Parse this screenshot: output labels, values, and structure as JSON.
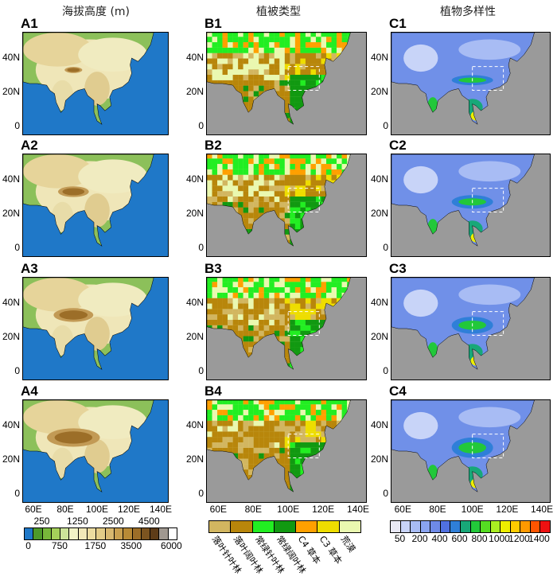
{
  "column_titles": [
    "海拔高度 (m)",
    "植被类型",
    "植物多样性"
  ],
  "panel_labels": {
    "A": [
      "A1",
      "A2",
      "A3",
      "A4"
    ],
    "B": [
      "B1",
      "B2",
      "B3",
      "B4"
    ],
    "C": [
      "C1",
      "C2",
      "C3",
      "C4"
    ]
  },
  "y_ticks": [
    "40N",
    "20N",
    "0"
  ],
  "x_ticks": [
    "60E",
    "80E",
    "100E",
    "120E",
    "140E"
  ],
  "colors": {
    "ocean_A": "#1f78c8",
    "ocean_BC": "#9a9a9a",
    "coast": "#000000",
    "box": "#ffffff"
  },
  "elevation_legend": {
    "top_labels": [
      "250",
      "1250",
      "2500",
      "4500"
    ],
    "bottom_labels": [
      "0",
      "750",
      "1750",
      "3500",
      "6000"
    ],
    "colors": [
      "#1f78c8",
      "#4e9a2a",
      "#78b83a",
      "#a5d05a",
      "#cde49a",
      "#f1f2c6",
      "#f1e8b8",
      "#ecdca0",
      "#e3cc88",
      "#d8b870",
      "#c9a050",
      "#b88a36",
      "#9c6e28",
      "#7c5420",
      "#5e3c18",
      "#a09890",
      "#ffffff"
    ]
  },
  "vegetation_legend": {
    "labels": [
      "落叶针叶林",
      "落叶阔叶林",
      "常绿针叶林",
      "常绿阔叶林",
      "C4 草本",
      "C3 草本",
      "荒漠"
    ],
    "colors": [
      "#d2b660",
      "#b8860b",
      "#22ee22",
      "#119911",
      "#ffa000",
      "#eedd00",
      "#eaf8b0"
    ]
  },
  "diversity_legend": {
    "labels": [
      "50",
      "200",
      "400",
      "600",
      "800",
      "1000",
      "1200",
      "1400"
    ],
    "colors": [
      "#e8e8f4",
      "#c8d4f8",
      "#a8bcf4",
      "#8aa4f0",
      "#6e8ae8",
      "#5070e0",
      "#2f7fd8",
      "#18a878",
      "#22c83a",
      "#55dd22",
      "#aaee22",
      "#eeee00",
      "#ffcc00",
      "#ff9900",
      "#ff5500",
      "#ee1111"
    ]
  }
}
